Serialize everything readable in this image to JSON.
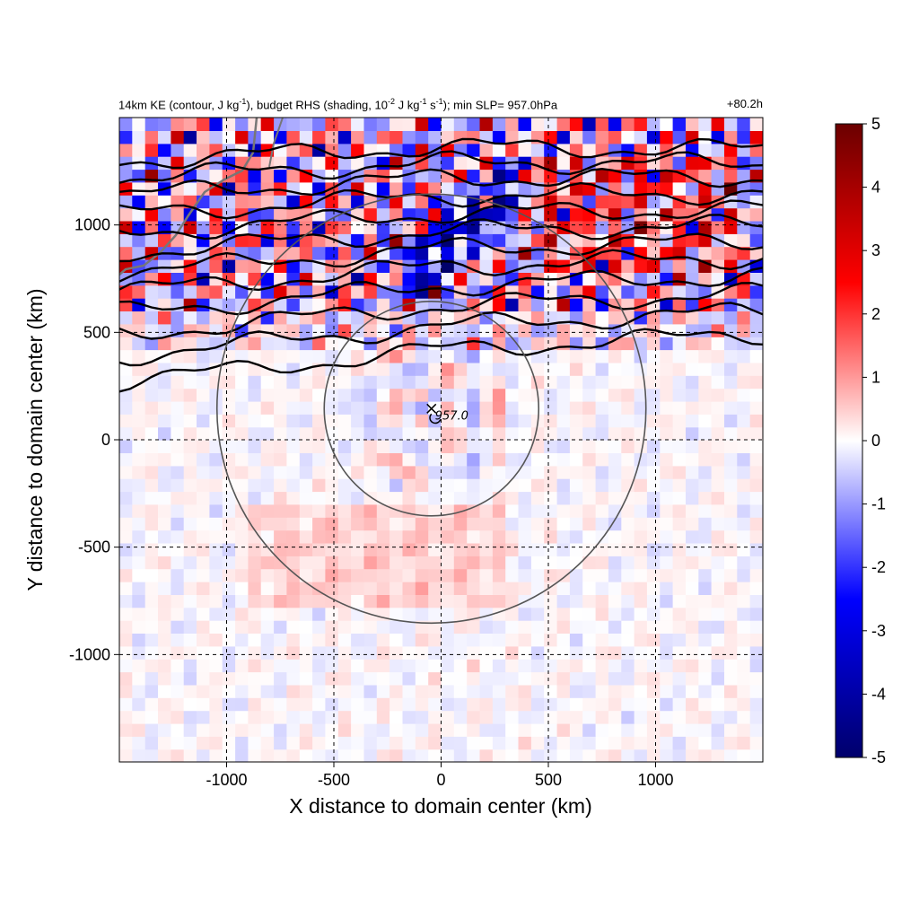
{
  "title": {
    "left_parts": {
      "p1": "14km KE (contour, J kg",
      "sup1": "-1",
      "p2": "), budget RHS (shading, 10",
      "sup2": "-2",
      "p3": " J kg",
      "sup3": "-1",
      "p4": " s",
      "sup4": "-1",
      "p5": "); min SLP= 957.0hPa"
    },
    "right": "+80.2h"
  },
  "chart_data": {
    "type": "heatmap",
    "xlabel": "X distance to domain center (km)",
    "ylabel": "Y distance to domain center (km)",
    "xlim": [
      -1500,
      1500
    ],
    "ylim": [
      -1500,
      1500
    ],
    "x_ticks": [
      -1000,
      -500,
      0,
      500,
      1000
    ],
    "y_ticks": [
      -1000,
      -500,
      0,
      500,
      1000
    ],
    "x_tick_labels": [
      "-1000",
      "-500",
      "0",
      "500",
      "1000"
    ],
    "y_tick_labels": [
      "-1000",
      "-500",
      "0",
      "500",
      "1000"
    ],
    "grid": "dashed",
    "colorbar": {
      "min": -5,
      "max": 5,
      "ticks": [
        "5",
        "4",
        "3",
        "2",
        "1",
        "0",
        "-1",
        "-2",
        "-3",
        "-4",
        "-5"
      ],
      "colormap": [
        "#00006b",
        "#0000ff",
        "#ffffff",
        "#ff0000",
        "#6b0000"
      ]
    },
    "storm_center": {
      "x": -45,
      "y": 145,
      "label": "957.0"
    },
    "range_circles_km": [
      500,
      1000
    ],
    "ke_contours_y_km": [
      1450,
      1370,
      1290,
      1200,
      1110,
      1020,
      930,
      840,
      740,
      640,
      540,
      420
    ],
    "ke_contour_color": "#000000",
    "coastline_color": "#777777"
  }
}
